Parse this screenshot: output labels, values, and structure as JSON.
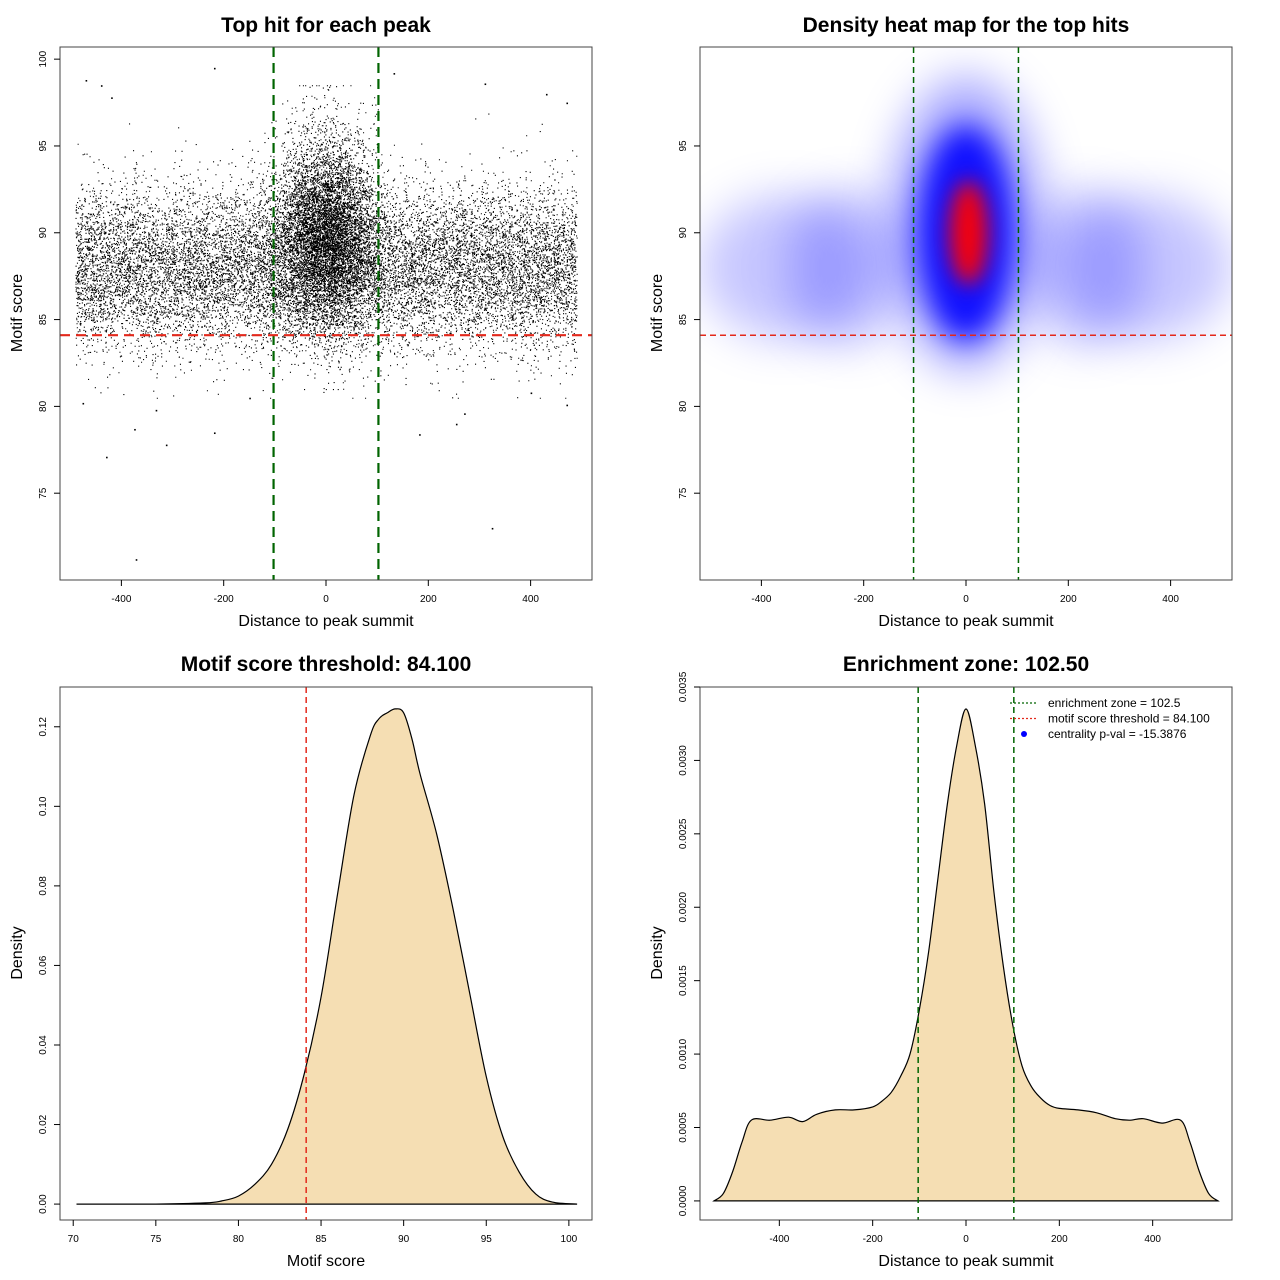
{
  "chart_data": [
    {
      "id": "scatter",
      "type": "scatter",
      "title": "Top hit for each peak",
      "xlabel": "Distance to peak summit",
      "ylabel": "Motif score",
      "xlim": [
        -520,
        520
      ],
      "ylim": [
        70,
        100.7
      ],
      "xticks": [
        -400,
        -200,
        0,
        200,
        400
      ],
      "yticks": [
        75,
        80,
        85,
        90,
        95,
        100
      ],
      "grid": false,
      "point_color": "#000000",
      "approx_point_count": 22000,
      "point_distribution": {
        "central_cluster": {
          "x_mean": 0,
          "x_sd": 50,
          "y_mean": 90,
          "y_sd": 2.8
        },
        "background": {
          "x_range": [
            -490,
            490
          ],
          "y_mean": 88,
          "y_sd": 2.3
        }
      },
      "outliers": [
        {
          "x": -470,
          "y": 98.8
        },
        {
          "x": -440,
          "y": 98.5
        },
        {
          "x": -420,
          "y": 97.8
        },
        {
          "x": -219,
          "y": 99.5
        },
        {
          "x": -372,
          "y": 71.2
        },
        {
          "x": 324,
          "y": 73.0
        },
        {
          "x": -430,
          "y": 77.1
        },
        {
          "x": -313,
          "y": 77.8
        },
        {
          "x": -375,
          "y": 78.7
        },
        {
          "x": -219,
          "y": 78.5
        },
        {
          "x": 182,
          "y": 78.4
        },
        {
          "x": 254,
          "y": 79.0
        },
        {
          "x": 270,
          "y": 79.6
        },
        {
          "x": -476,
          "y": 80.2
        },
        {
          "x": 470,
          "y": 80.1
        },
        {
          "x": -333,
          "y": 79.8
        },
        {
          "x": -150,
          "y": 80.5
        },
        {
          "x": 400,
          "y": 80.8
        },
        {
          "x": 132,
          "y": 99.2
        },
        {
          "x": 430,
          "y": 98.0
        },
        {
          "x": 470,
          "y": 97.5
        },
        {
          "x": 310,
          "y": 98.6
        }
      ],
      "reference_lines": [
        {
          "orientation": "vertical",
          "value": -102.5,
          "color": "#006400",
          "style": "dashed"
        },
        {
          "orientation": "vertical",
          "value": 102.5,
          "color": "#006400",
          "style": "dashed"
        },
        {
          "orientation": "horizontal",
          "value": 84.1,
          "color": "#e3281b",
          "style": "dashed"
        }
      ]
    },
    {
      "id": "heatmap",
      "type": "heatmap",
      "title": "Density heat map for the top hits",
      "xlabel": "Distance to peak summit",
      "ylabel": "Motif score",
      "xlim": [
        -520,
        520
      ],
      "ylim": [
        70,
        100.7
      ],
      "xticks": [
        -400,
        -200,
        0,
        200,
        400
      ],
      "yticks": [
        75,
        80,
        85,
        90,
        95
      ],
      "grid": false,
      "colors": {
        "low": "#ffffff",
        "mid": "#0000ff",
        "high": "#ff0000"
      },
      "density_peak": {
        "x": 0,
        "y": 90
      },
      "reference_lines": [
        {
          "orientation": "vertical",
          "value": -102.5,
          "color": "#006400",
          "style": "dashed"
        },
        {
          "orientation": "vertical",
          "value": 102.5,
          "color": "#006400",
          "style": "dashed"
        },
        {
          "orientation": "horizontal",
          "value": 84.1,
          "color": "#e3281b",
          "style": "dashed"
        }
      ]
    },
    {
      "id": "score-density",
      "type": "area",
      "title": "Motif score threshold: 84.100",
      "xlabel": "Motif score",
      "ylabel": "Density",
      "xlim": [
        69.2,
        101.4
      ],
      "ylim": [
        -0.004,
        0.13
      ],
      "xticks": [
        70,
        75,
        80,
        85,
        90,
        95,
        100
      ],
      "yticks": [
        "0.00",
        "0.02",
        "0.04",
        "0.06",
        "0.08",
        "0.10",
        "0.12"
      ],
      "grid": false,
      "fill_color": "#f5deb3",
      "line_color": "#000000",
      "x": [
        70.2,
        75,
        78,
        79,
        80,
        81,
        82,
        83,
        84,
        85,
        86,
        87,
        88,
        88.5,
        89,
        89.5,
        90,
        90.5,
        91,
        92,
        93,
        94,
        95,
        96,
        97,
        98,
        99,
        100.5
      ],
      "y": [
        0,
        0,
        0.0003,
        0.0008,
        0.002,
        0.005,
        0.01,
        0.019,
        0.033,
        0.052,
        0.078,
        0.103,
        0.118,
        0.122,
        0.1235,
        0.1245,
        0.1235,
        0.117,
        0.108,
        0.093,
        0.074,
        0.053,
        0.032,
        0.017,
        0.008,
        0.0025,
        0.0005,
        0
      ],
      "reference_lines": [
        {
          "orientation": "vertical",
          "value": 84.1,
          "color": "#e3281b",
          "style": "dashed"
        }
      ]
    },
    {
      "id": "distance-density",
      "type": "area",
      "title": "Enrichment zone: 102.50",
      "xlabel": "Distance to peak summit",
      "ylabel": "Density",
      "xlim": [
        -570,
        570
      ],
      "ylim": [
        -0.00013,
        0.0035
      ],
      "xticks": [
        -400,
        -200,
        0,
        200,
        400
      ],
      "yticks": [
        "0.0000",
        "0.0005",
        "0.0010",
        "0.0015",
        "0.0020",
        "0.0025",
        "0.0030",
        "0.0035"
      ],
      "grid": false,
      "fill_color": "#f5deb3",
      "line_color": "#000000",
      "x": [
        -540,
        -520,
        -500,
        -480,
        -460,
        -420,
        -380,
        -350,
        -320,
        -280,
        -240,
        -200,
        -180,
        -160,
        -140,
        -120,
        -100,
        -80,
        -60,
        -40,
        -20,
        0,
        20,
        40,
        60,
        80,
        100,
        120,
        140,
        160,
        180,
        200,
        240,
        280,
        320,
        350,
        380,
        420,
        460,
        480,
        500,
        520,
        540
      ],
      "y": [
        0,
        5e-05,
        0.0002,
        0.0004,
        0.00055,
        0.00055,
        0.00057,
        0.00054,
        0.00059,
        0.00062,
        0.00062,
        0.00064,
        0.00068,
        0.00074,
        0.00085,
        0.001,
        0.0013,
        0.0017,
        0.0022,
        0.0027,
        0.0031,
        0.00335,
        0.0031,
        0.0027,
        0.0021,
        0.0016,
        0.0012,
        0.00092,
        0.00078,
        0.0007,
        0.00065,
        0.00063,
        0.00062,
        0.0006,
        0.00056,
        0.00055,
        0.00056,
        0.00053,
        0.00055,
        0.0004,
        0.0002,
        5e-05,
        0
      ],
      "reference_lines": [
        {
          "orientation": "vertical",
          "value": -102.5,
          "color": "#006400",
          "style": "dashed"
        },
        {
          "orientation": "vertical",
          "value": 102.5,
          "color": "#006400",
          "style": "dashed"
        }
      ],
      "legend": {
        "placement": "top-right",
        "entries": [
          {
            "label": "enrichment zone = 102.5",
            "color": "#006400",
            "symbol": "dotted-line"
          },
          {
            "label": "motif score threshold = 84.100",
            "color": "#e3281b",
            "symbol": "dotted-line"
          },
          {
            "label": "centrality p-val = -15.3876",
            "color": "#0000ff",
            "symbol": "dot"
          }
        ]
      }
    }
  ]
}
